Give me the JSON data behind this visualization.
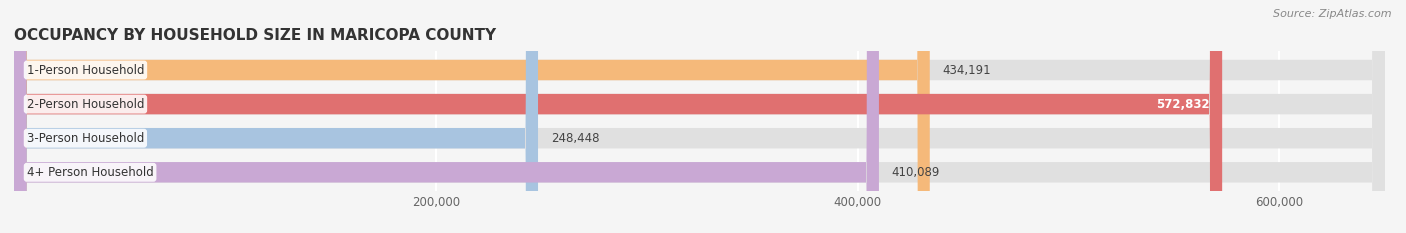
{
  "title": "OCCUPANCY BY HOUSEHOLD SIZE IN MARICOPA COUNTY",
  "source": "Source: ZipAtlas.com",
  "categories": [
    "1-Person Household",
    "2-Person Household",
    "3-Person Household",
    "4+ Person Household"
  ],
  "values": [
    434191,
    572832,
    248448,
    410089
  ],
  "bar_colors": [
    "#f5b97a",
    "#e07070",
    "#a8c4e0",
    "#c9a8d4"
  ],
  "value_inside": [
    false,
    true,
    false,
    false
  ],
  "xlim": [
    0,
    650000
  ],
  "xticks": [
    200000,
    400000,
    600000
  ],
  "xtick_labels": [
    "200,000",
    "400,000",
    "600,000"
  ],
  "background_color": "#f5f5f5",
  "bar_background_color": "#e0e0e0",
  "title_fontsize": 11,
  "source_fontsize": 8,
  "label_fontsize": 8.5,
  "tick_fontsize": 8.5
}
